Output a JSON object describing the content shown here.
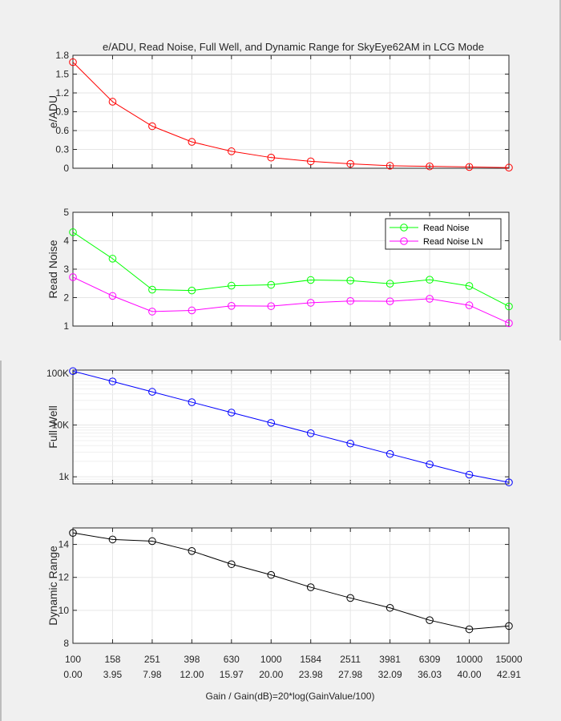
{
  "title": "e/ADU, Read Noise, Full Well, and Dynamic Range for SkyEye62AM in LCG Mode",
  "xlabel": "Gain / Gain(dB)=20*log(GainValue/100)",
  "x_gain_labels": [
    "100",
    "158",
    "251",
    "398",
    "630",
    "1000",
    "1584",
    "2511",
    "3981",
    "6309",
    "10000",
    "15000"
  ],
  "x_db_labels": [
    "0.00",
    "3.95",
    "7.98",
    "12.00",
    "15.97",
    "20.00",
    "23.98",
    "27.98",
    "32.09",
    "36.03",
    "40.00",
    "42.91"
  ],
  "colors": {
    "eadu": "#ff0000",
    "read_noise": "#00ff00",
    "read_noise_ln": "#ff00ff",
    "full_well": "#0000ff",
    "dynamic_range": "#000000"
  },
  "chart_data": [
    {
      "type": "line",
      "ylabel": "e/ADU",
      "ylim": [
        0,
        1.8
      ],
      "yticks": [
        0,
        0.3,
        0.6,
        0.9,
        1.2,
        1.5,
        1.8
      ],
      "ytick_labels": [
        "0",
        "0.3",
        "0.6",
        "0.9",
        "1.2",
        "1.5",
        "1.8"
      ],
      "grid": true,
      "series": [
        {
          "values": [
            1.69,
            1.06,
            0.67,
            0.42,
            0.27,
            0.17,
            0.11,
            0.07,
            0.04,
            0.03,
            0.02,
            0.01
          ]
        }
      ]
    },
    {
      "type": "line",
      "ylabel": "Read Noise",
      "ylim": [
        1,
        5
      ],
      "yticks": [
        1,
        2,
        3,
        4,
        5
      ],
      "ytick_labels": [
        "1",
        "2",
        "3",
        "4",
        "5"
      ],
      "grid": true,
      "legend": "top-right",
      "series": [
        {
          "name": "Read Noise",
          "values": [
            4.3,
            3.37,
            2.28,
            2.25,
            2.42,
            2.45,
            2.62,
            2.6,
            2.49,
            2.63,
            2.41,
            1.69
          ]
        },
        {
          "name": "Read Noise LN",
          "values": [
            2.72,
            2.06,
            1.51,
            1.55,
            1.71,
            1.7,
            1.82,
            1.88,
            1.87,
            1.96,
            1.73,
            1.1
          ]
        }
      ]
    },
    {
      "type": "line",
      "ylabel": "Full Well",
      "yscale": "log",
      "ylim": [
        730,
        115000
      ],
      "yticks": [
        1000,
        10000,
        100000
      ],
      "ytick_labels": [
        "1k",
        "10K",
        "100K"
      ],
      "grid": true,
      "series": [
        {
          "values": [
            110000,
            69500,
            43800,
            27600,
            17400,
            11000,
            6940,
            4380,
            2760,
            1740,
            1100,
            780
          ]
        }
      ]
    },
    {
      "type": "line",
      "ylabel": "Dynamic Range",
      "ylim": [
        8,
        15
      ],
      "yticks": [
        8,
        10,
        12,
        14
      ],
      "ytick_labels": [
        "8",
        "10",
        "12",
        "14"
      ],
      "grid": true,
      "series": [
        {
          "values": [
            14.7,
            14.3,
            14.2,
            13.6,
            12.8,
            12.15,
            11.4,
            10.75,
            10.15,
            9.4,
            8.85,
            9.05
          ]
        }
      ]
    }
  ]
}
